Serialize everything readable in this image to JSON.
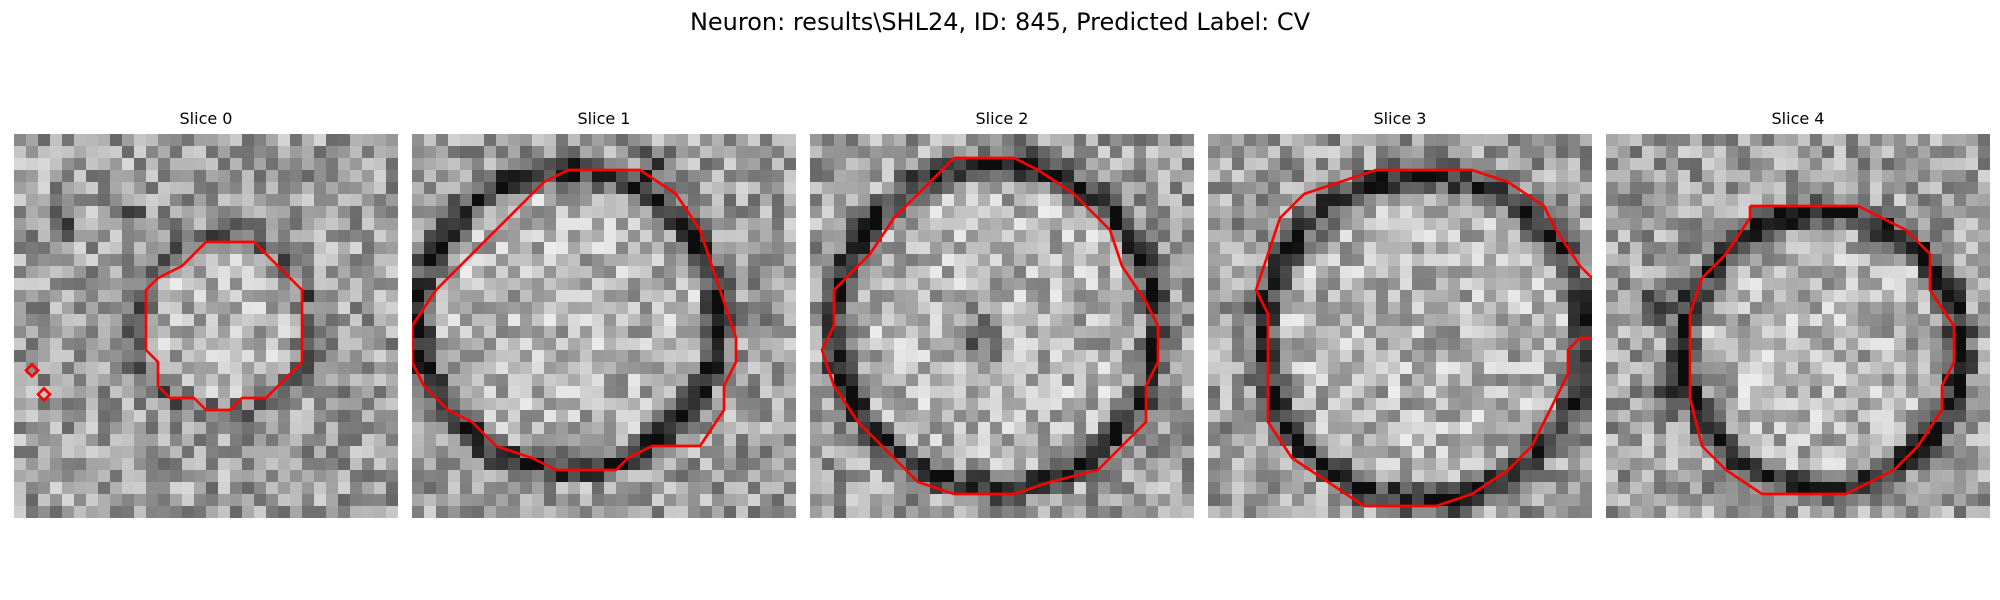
{
  "figure": {
    "title": "Neuron: results\\SHL24, ID: 845, Predicted Label: CV"
  },
  "contour_color": "#ff0000",
  "panels": [
    {
      "title": "Slice 0",
      "image": "grayscale-microscopy-patch",
      "contour": "red-segmentation-outline"
    },
    {
      "title": "Slice 1",
      "image": "grayscale-microscopy-patch",
      "contour": "red-segmentation-outline"
    },
    {
      "title": "Slice 2",
      "image": "grayscale-microscopy-patch",
      "contour": "red-segmentation-outline"
    },
    {
      "title": "Slice 3",
      "image": "grayscale-microscopy-patch",
      "contour": "red-segmentation-outline"
    },
    {
      "title": "Slice 4",
      "image": "grayscale-microscopy-patch",
      "contour": "red-segmentation-outline"
    }
  ]
}
